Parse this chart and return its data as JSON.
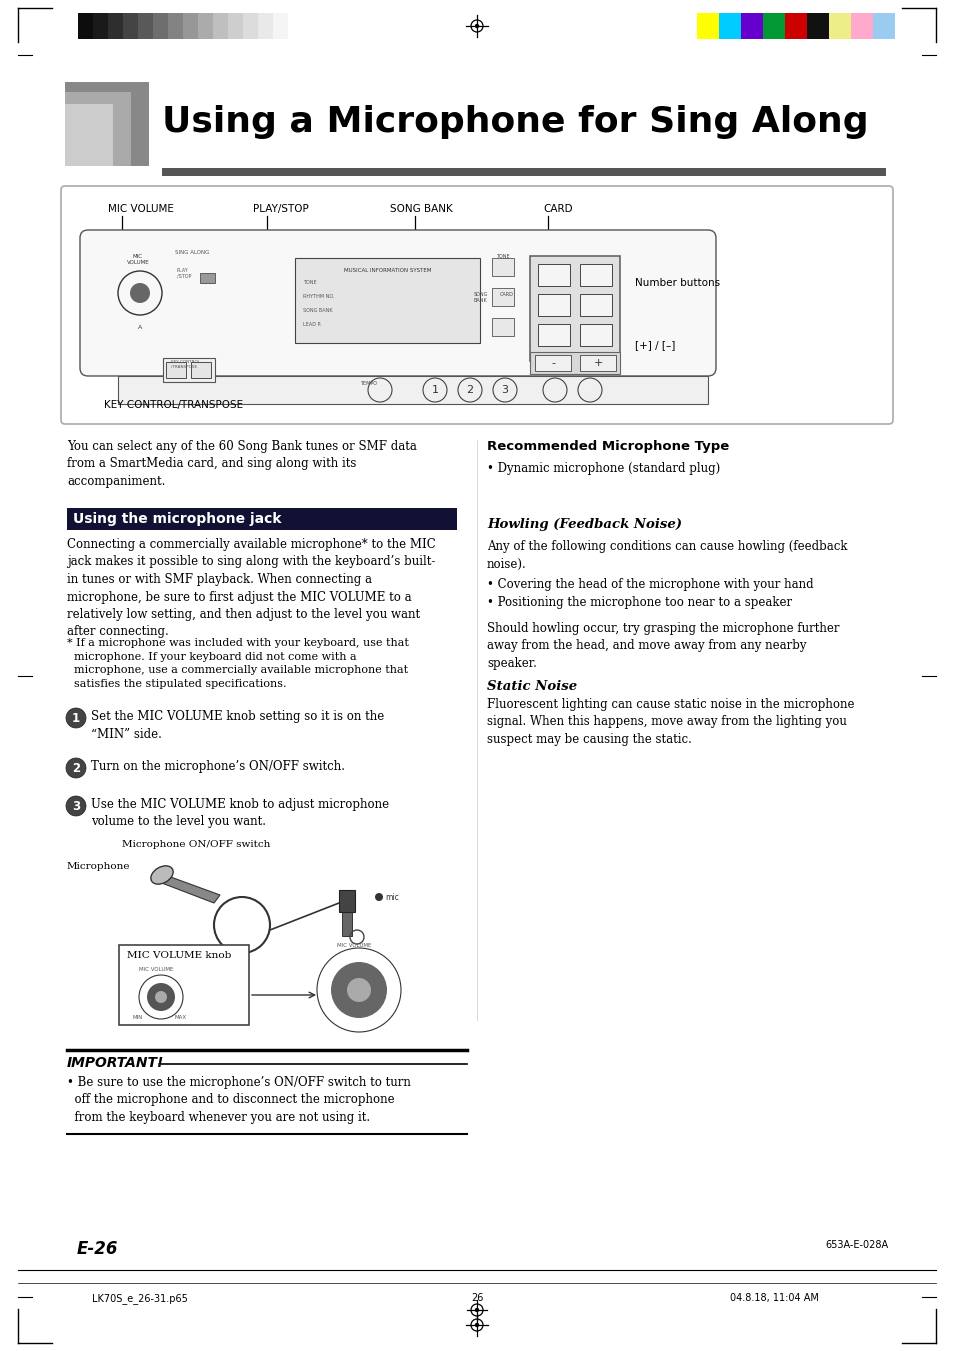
{
  "page_bg": "#ffffff",
  "title_text": "Using a Microphone for Sing Along",
  "header_bar_colors_left": [
    "#0d0d0d",
    "#1a1a1a",
    "#2e2e2e",
    "#444444",
    "#595959",
    "#6e6e6e",
    "#838383",
    "#979797",
    "#ababab",
    "#bfbfbf",
    "#cecece",
    "#dcdcdc",
    "#e9e9e9",
    "#f5f5f5",
    "#ffffff"
  ],
  "header_bar_colors_right": [
    "#ffff00",
    "#00ccff",
    "#6600cc",
    "#009933",
    "#cc0000",
    "#111111",
    "#eeee88",
    "#ffaacc",
    "#99ccee"
  ],
  "section_heading_text": "Using the microphone jack",
  "footer_left": "E-26",
  "footer_right": "653A-E-028A",
  "footer_bottom_left": "LK70S_e_26-31.p65",
  "footer_bottom_center": "26",
  "footer_bottom_right": "04.8.18, 11:04 AM"
}
